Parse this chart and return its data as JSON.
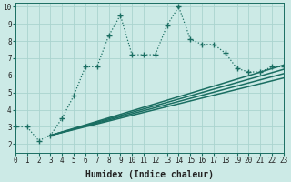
{
  "xlabel": "Humidex (Indice chaleur)",
  "xlim": [
    0,
    23
  ],
  "ylim": [
    1.5,
    10.2
  ],
  "bg_color": "#cceae6",
  "grid_color": "#aad4cf",
  "line_color": "#1a6e62",
  "main_line_x": [
    0,
    1,
    2,
    3,
    4,
    5,
    6,
    7,
    8,
    9,
    10,
    11,
    12,
    13,
    14,
    15,
    16,
    17,
    18,
    19,
    20,
    21,
    22,
    23
  ],
  "main_line_y": [
    3.0,
    3.0,
    2.2,
    2.5,
    3.5,
    4.8,
    6.5,
    6.5,
    8.3,
    9.5,
    7.2,
    7.2,
    7.2,
    8.9,
    10.0,
    8.1,
    7.8,
    7.8,
    7.3,
    6.4,
    6.2,
    6.2,
    6.5,
    6.5
  ],
  "ref_lines": [
    {
      "x": [
        3,
        23
      ],
      "y": [
        2.5,
        6.6
      ]
    },
    {
      "x": [
        3,
        23
      ],
      "y": [
        2.5,
        6.35
      ]
    },
    {
      "x": [
        3,
        23
      ],
      "y": [
        2.5,
        6.1
      ]
    },
    {
      "x": [
        3,
        23
      ],
      "y": [
        2.5,
        5.85
      ]
    }
  ],
  "xticks": [
    0,
    1,
    2,
    3,
    4,
    5,
    6,
    7,
    8,
    9,
    10,
    11,
    12,
    13,
    14,
    15,
    16,
    17,
    18,
    19,
    20,
    21,
    22,
    23
  ],
  "yticks": [
    2,
    3,
    4,
    5,
    6,
    7,
    8,
    9,
    10
  ],
  "tick_fontsize": 5.5,
  "label_fontsize": 7,
  "marker": "+",
  "marker_size": 4,
  "linewidth": 0.9,
  "ref_linewidth": 1.1
}
